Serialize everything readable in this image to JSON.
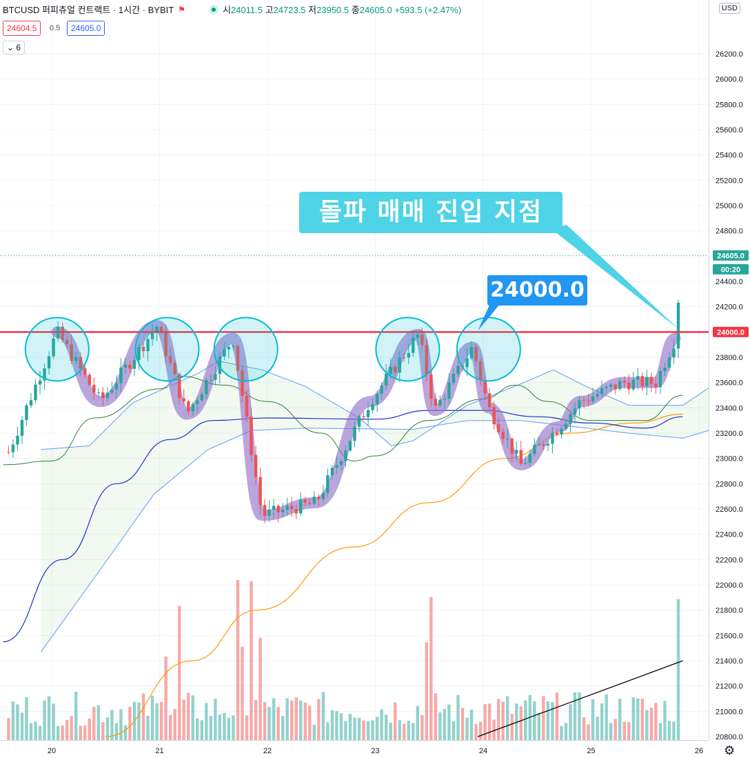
{
  "header": {
    "symbol": "BTCUSD 퍼피츄얼 컨트랙트 · 1시간 · BYBIT",
    "open_label": "시",
    "open": "24011.5",
    "high_label": "고",
    "high": "24723.5",
    "low_label": "저",
    "low": "23950.5",
    "close_label": "종",
    "close": "24605.0",
    "change": "+593.5 (+2.47%)"
  },
  "bid": "24604.5",
  "spread": "0.5",
  "ask": "24605.0",
  "indicator_toggle": "6",
  "currency": "USD",
  "annotation": {
    "callout": "돌파 매매 진입 지점",
    "level_label": "24000.0"
  },
  "price_labels": {
    "last": "24605.0",
    "countdown": "00:20",
    "level": "24000.0"
  },
  "colors": {
    "up": "#26a69a",
    "down": "#ef5350",
    "level": "#f23645",
    "callout": "#4fd3e6",
    "badge": "#2196f3",
    "path": "#9575cd",
    "circle": "#00bcd4"
  },
  "chart_data": {
    "type": "candlestick",
    "x_ticks": [
      "20",
      "21",
      "22",
      "23",
      "24",
      "25",
      "26"
    ],
    "y_ticks": [
      20800,
      21000,
      21200,
      21400,
      21600,
      21800,
      22000,
      22200,
      22400,
      22600,
      22800,
      23000,
      23200,
      23400,
      23600,
      23800,
      24000,
      24200,
      24400,
      24600,
      24800,
      25000,
      25200,
      25400,
      25600,
      25800,
      26000,
      26200
    ],
    "y_tick_labels": [
      "20800.0",
      "21000.0",
      "21200.0",
      "21400.0",
      "21600.0",
      "21800.0",
      "22000.0",
      "22200.0",
      "22400.0",
      "22600.0",
      "22800.0",
      "23000.0",
      "23200.0",
      "23400.0",
      "23600.0",
      "23800.0",
      "24000.0",
      "24200.0",
      "24400.0",
      "24600.0",
      "24800.0",
      "25000.0",
      "25200.0",
      "25400.0",
      "25600.0",
      "25800.0",
      "26000.0",
      "26200.0"
    ],
    "ylim": [
      20780,
      26340
    ],
    "xlim": [
      19.55,
      26.1
    ],
    "horizontal_level": 24000,
    "last_price": 24605,
    "key_closes": [
      {
        "x": 19.6,
        "y": 23050
      },
      {
        "x": 20.05,
        "y": 24000
      },
      {
        "x": 20.45,
        "y": 23450
      },
      {
        "x": 20.98,
        "y": 24050
      },
      {
        "x": 21.25,
        "y": 23350
      },
      {
        "x": 21.68,
        "y": 23950
      },
      {
        "x": 21.95,
        "y": 22550
      },
      {
        "x": 22.45,
        "y": 22650
      },
      {
        "x": 22.95,
        "y": 23450
      },
      {
        "x": 23.4,
        "y": 23980
      },
      {
        "x": 23.55,
        "y": 23380
      },
      {
        "x": 23.9,
        "y": 23880
      },
      {
        "x": 24.05,
        "y": 23400
      },
      {
        "x": 24.35,
        "y": 22950
      },
      {
        "x": 24.7,
        "y": 23250
      },
      {
        "x": 24.9,
        "y": 23450
      },
      {
        "x": 25.3,
        "y": 23600
      },
      {
        "x": 25.6,
        "y": 23600
      },
      {
        "x": 25.78,
        "y": 23950
      },
      {
        "x": 25.84,
        "y": 24605
      }
    ],
    "touch_points": [
      {
        "x": 20.05,
        "y": 24000
      },
      {
        "x": 21.07,
        "y": 24000
      },
      {
        "x": 21.8,
        "y": 24000
      },
      {
        "x": 23.3,
        "y": 24000
      },
      {
        "x": 24.05,
        "y": 24000
      }
    ],
    "ma_blue": [
      {
        "x": 19.55,
        "y": 21550
      },
      {
        "x": 20.1,
        "y": 22200
      },
      {
        "x": 20.6,
        "y": 22800
      },
      {
        "x": 21.1,
        "y": 23150
      },
      {
        "x": 21.5,
        "y": 23300
      },
      {
        "x": 22.0,
        "y": 23320
      },
      {
        "x": 23.0,
        "y": 23310
      },
      {
        "x": 23.5,
        "y": 23380
      },
      {
        "x": 24.0,
        "y": 23380
      },
      {
        "x": 24.5,
        "y": 23330
      },
      {
        "x": 25.0,
        "y": 23280
      },
      {
        "x": 25.5,
        "y": 23240
      },
      {
        "x": 25.85,
        "y": 23330
      }
    ],
    "ma_green": [
      {
        "x": 19.55,
        "y": 22950
      },
      {
        "x": 20.0,
        "y": 22980
      },
      {
        "x": 20.4,
        "y": 23320
      },
      {
        "x": 21.0,
        "y": 23550
      },
      {
        "x": 21.2,
        "y": 23650
      },
      {
        "x": 21.6,
        "y": 23580
      },
      {
        "x": 22.0,
        "y": 23450
      },
      {
        "x": 22.5,
        "y": 23200
      },
      {
        "x": 22.8,
        "y": 22980
      },
      {
        "x": 23.0,
        "y": 23020
      },
      {
        "x": 23.5,
        "y": 23300
      },
      {
        "x": 24.0,
        "y": 23470
      },
      {
        "x": 24.3,
        "y": 23580
      },
      {
        "x": 24.6,
        "y": 23450
      },
      {
        "x": 25.0,
        "y": 23300
      },
      {
        "x": 25.5,
        "y": 23300
      },
      {
        "x": 25.85,
        "y": 23500
      }
    ],
    "ma_orange": [
      {
        "x": 20.5,
        "y": 20800
      },
      {
        "x": 21.3,
        "y": 21400
      },
      {
        "x": 21.9,
        "y": 21800
      },
      {
        "x": 22.8,
        "y": 22300
      },
      {
        "x": 23.5,
        "y": 22650
      },
      {
        "x": 24.2,
        "y": 23000
      },
      {
        "x": 24.8,
        "y": 23200
      },
      {
        "x": 25.4,
        "y": 23280
      },
      {
        "x": 25.85,
        "y": 23350
      }
    ],
    "volume_trend": [
      {
        "x": 23.95,
        "y": 20800
      },
      {
        "x": 25.85,
        "y": 21400
      }
    ]
  }
}
